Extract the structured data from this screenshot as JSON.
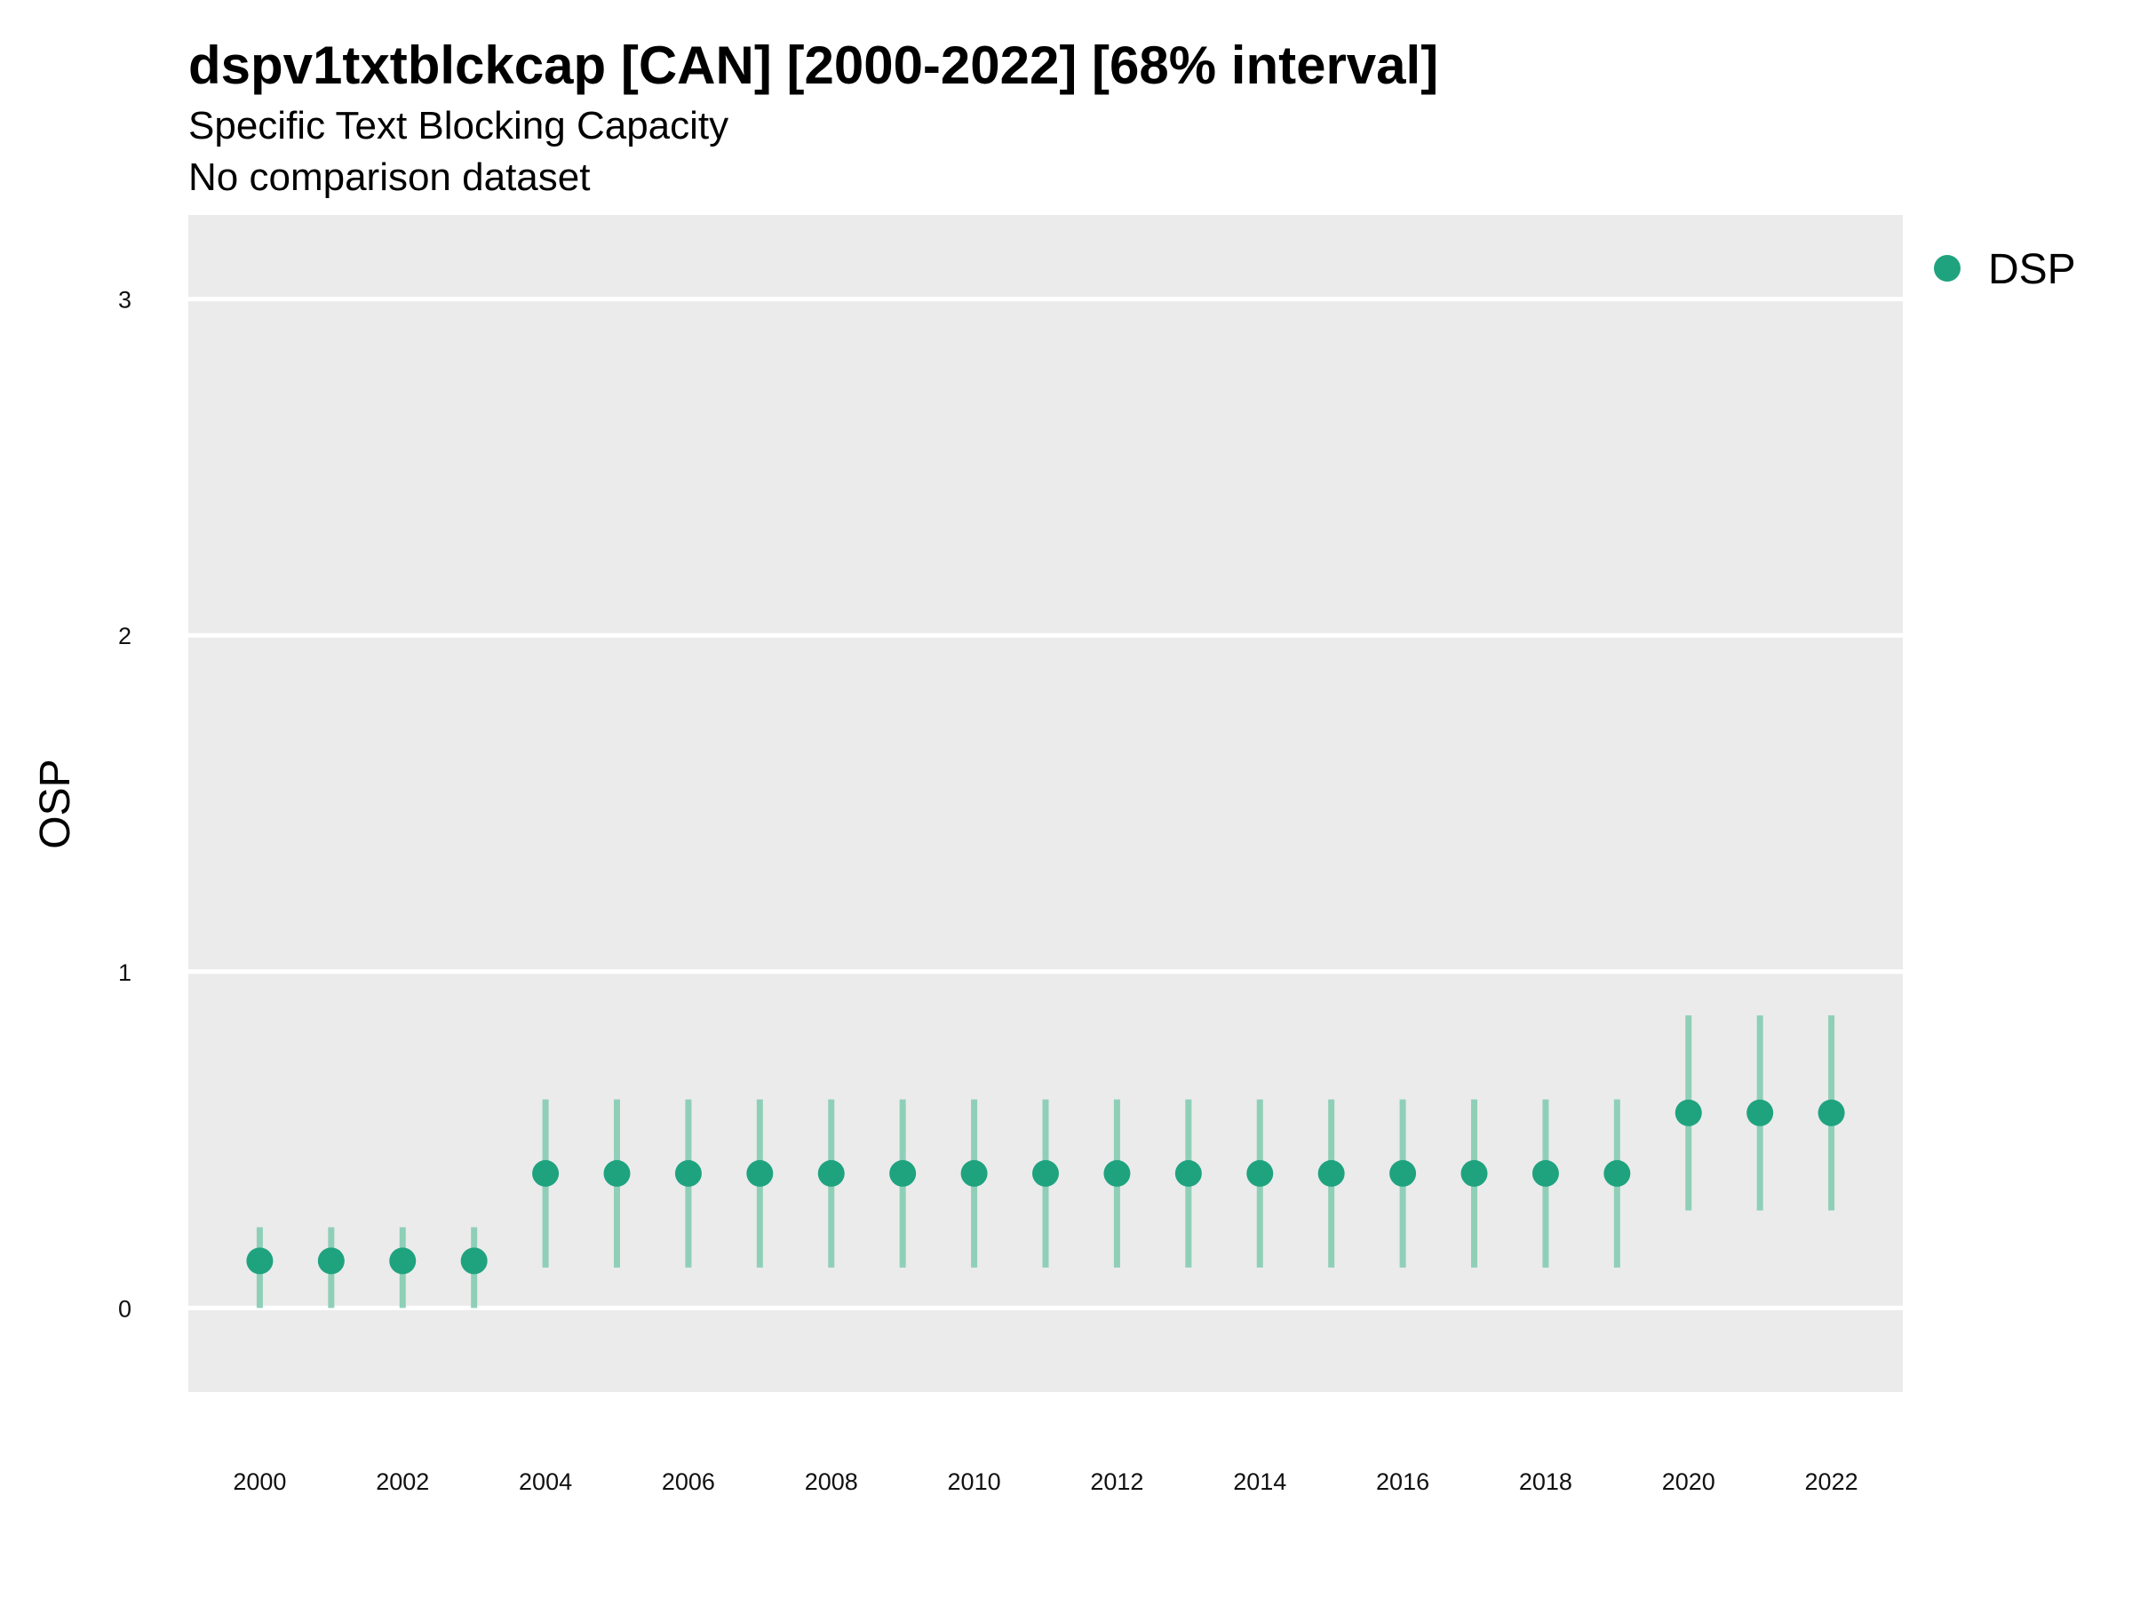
{
  "chart_data": {
    "type": "scatter",
    "title": "dspv1txtblckcap [CAN] [2000-2022] [68% interval]",
    "subtitle": "Specific Text Blocking Capacity",
    "caption_line": "No comparison dataset",
    "xlabel": "",
    "ylabel": "OSP",
    "x_ticks": [
      "2000",
      "2002",
      "2004",
      "2006",
      "2008",
      "2010",
      "2012",
      "2014",
      "2016",
      "2018",
      "2020",
      "2022"
    ],
    "y_ticks": [
      "0",
      "1",
      "2",
      "3"
    ],
    "xlim": [
      1999,
      2023
    ],
    "ylim": [
      -0.25,
      3.25
    ],
    "grid": true,
    "legend_position": "top-right",
    "colors": {
      "panel_background": "#ebebeb",
      "grid": "#ffffff",
      "point": "#1fa37f",
      "interval": "#8fcfb8"
    },
    "series": [
      {
        "name": "DSP",
        "x": [
          2000,
          2001,
          2002,
          2003,
          2004,
          2005,
          2006,
          2007,
          2008,
          2009,
          2010,
          2011,
          2012,
          2013,
          2014,
          2015,
          2016,
          2017,
          2018,
          2019,
          2020,
          2021,
          2022
        ],
        "y": [
          0.14,
          0.14,
          0.14,
          0.14,
          0.4,
          0.4,
          0.4,
          0.4,
          0.4,
          0.4,
          0.4,
          0.4,
          0.4,
          0.4,
          0.4,
          0.4,
          0.4,
          0.4,
          0.4,
          0.4,
          0.58,
          0.58,
          0.58
        ],
        "lower": [
          0.0,
          0.0,
          0.0,
          0.0,
          0.12,
          0.12,
          0.12,
          0.12,
          0.12,
          0.12,
          0.12,
          0.12,
          0.12,
          0.12,
          0.12,
          0.12,
          0.12,
          0.12,
          0.12,
          0.12,
          0.29,
          0.29,
          0.29
        ],
        "upper": [
          0.24,
          0.24,
          0.24,
          0.24,
          0.62,
          0.62,
          0.62,
          0.62,
          0.62,
          0.62,
          0.62,
          0.62,
          0.62,
          0.62,
          0.62,
          0.62,
          0.62,
          0.62,
          0.62,
          0.62,
          0.87,
          0.87,
          0.87
        ]
      }
    ]
  }
}
